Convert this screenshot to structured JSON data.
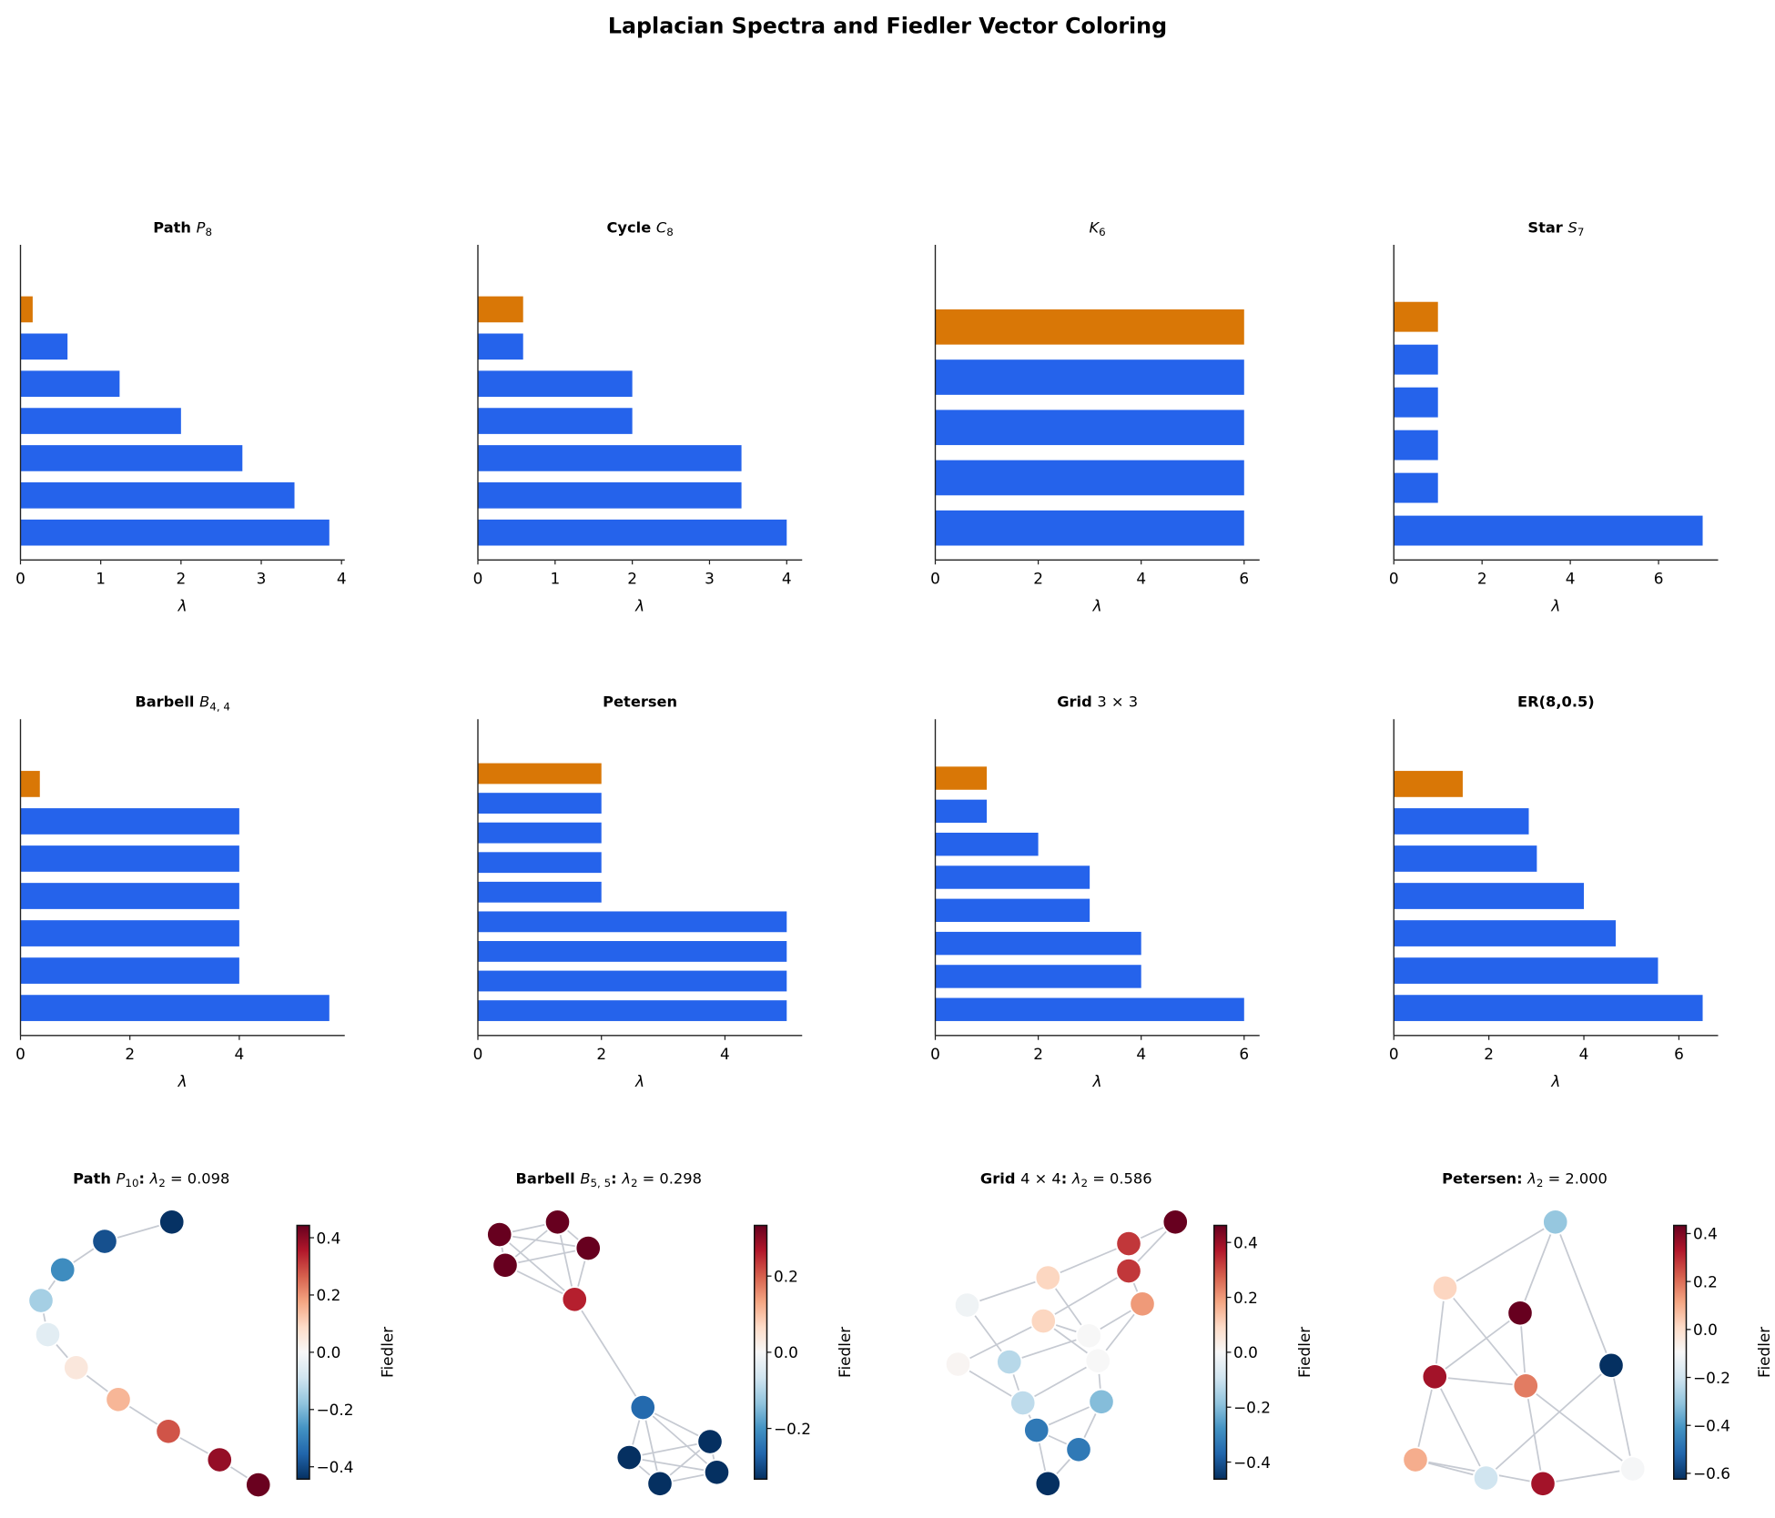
{
  "title": "Laplacian Spectra and Fiedler Vector Coloring",
  "colors": {
    "bar": "#2563eb",
    "fiedler_bar": "#d97706",
    "edge": "#c6cad2",
    "axis": "#222222"
  },
  "chart_data": [
    {
      "type": "bar",
      "orientation": "horizontal",
      "title": [
        {
          "t": "Path ",
          "k": "b"
        },
        {
          "t": "P",
          "k": "i"
        },
        {
          "t": "8",
          "k": "s"
        }
      ],
      "xlabel": "λ",
      "values": [
        0,
        0.152,
        0.586,
        1.235,
        2,
        2.765,
        3.414,
        3.848
      ],
      "highlight_index": 1,
      "xticks": [
        "0",
        "1",
        "2",
        "3",
        "4"
      ],
      "xtick_values": [
        0,
        1,
        2,
        3,
        4
      ]
    },
    {
      "type": "bar",
      "orientation": "horizontal",
      "title": [
        {
          "t": "Cycle ",
          "k": "b"
        },
        {
          "t": "C",
          "k": "i"
        },
        {
          "t": "8",
          "k": "s"
        }
      ],
      "xlabel": "λ",
      "values": [
        0,
        0.586,
        0.586,
        2,
        2,
        3.414,
        3.414,
        4
      ],
      "highlight_index": 1,
      "xticks": [
        "0",
        "1",
        "2",
        "3",
        "4"
      ],
      "xtick_values": [
        0,
        1,
        2,
        3,
        4
      ]
    },
    {
      "type": "bar",
      "orientation": "horizontal",
      "title": [
        {
          "t": "K",
          "k": "i"
        },
        {
          "t": "6",
          "k": "s"
        }
      ],
      "xlabel": "λ",
      "values": [
        0,
        6,
        6,
        6,
        6,
        6
      ],
      "highlight_index": 1,
      "xticks": [
        "0",
        "2",
        "4",
        "6"
      ],
      "xtick_values": [
        0,
        2,
        4,
        6
      ]
    },
    {
      "type": "bar",
      "orientation": "horizontal",
      "title": [
        {
          "t": "Star ",
          "k": "b"
        },
        {
          "t": "S",
          "k": "i"
        },
        {
          "t": "7",
          "k": "s"
        }
      ],
      "xlabel": "λ",
      "values": [
        0,
        1,
        1,
        1,
        1,
        1,
        7
      ],
      "highlight_index": 1,
      "xticks": [
        "0",
        "2",
        "4",
        "6"
      ],
      "xtick_values": [
        0,
        2,
        4,
        6
      ]
    },
    {
      "type": "bar",
      "orientation": "horizontal",
      "title": [
        {
          "t": "Barbell ",
          "k": "b"
        },
        {
          "t": "B",
          "k": "i"
        },
        {
          "t": "4, 4",
          "k": "s"
        }
      ],
      "xlabel": "λ",
      "values": [
        0,
        0.354,
        4,
        4,
        4,
        4,
        4,
        5.646
      ],
      "highlight_index": 1,
      "xticks": [
        "0",
        "2",
        "4"
      ],
      "xtick_values": [
        0,
        2,
        4
      ]
    },
    {
      "type": "bar",
      "orientation": "horizontal",
      "title": [
        {
          "t": "Petersen",
          "k": "b"
        }
      ],
      "xlabel": "λ",
      "values": [
        0,
        2,
        2,
        2,
        2,
        2,
        5,
        5,
        5,
        5
      ],
      "highlight_index": 1,
      "xticks": [
        "0",
        "2",
        "4"
      ],
      "xtick_values": [
        0,
        2,
        4
      ]
    },
    {
      "type": "bar",
      "orientation": "horizontal",
      "title": [
        {
          "t": "Grid ",
          "k": "b"
        },
        {
          "t": "3 × 3",
          "k": "n"
        }
      ],
      "xlabel": "λ",
      "values": [
        0,
        1,
        1,
        2,
        3,
        3,
        4,
        4,
        6
      ],
      "highlight_index": 1,
      "xticks": [
        "0",
        "2",
        "4",
        "6"
      ],
      "xtick_values": [
        0,
        2,
        4,
        6
      ]
    },
    {
      "type": "bar",
      "orientation": "horizontal",
      "title": [
        {
          "t": "ER(8,0.5)",
          "k": "b"
        }
      ],
      "xlabel": "λ",
      "values": [
        0,
        1.45,
        2.84,
        3.01,
        4.0,
        4.67,
        5.56,
        6.5
      ],
      "highlight_index": 1,
      "xticks": [
        "0",
        "2",
        "4",
        "6"
      ],
      "xtick_values": [
        0,
        2,
        4,
        6
      ]
    }
  ],
  "graphs": [
    {
      "title": [
        {
          "t": "Path ",
          "k": "b"
        },
        {
          "t": "P",
          "k": "i"
        },
        {
          "t": "10",
          "k": "s"
        },
        {
          "t": ": ",
          "k": "b"
        },
        {
          "t": "λ",
          "k": "i"
        },
        {
          "t": "2",
          "k": "s"
        },
        {
          "t": " = 0.098",
          "k": "n"
        }
      ],
      "fiedler": [
        -0.44,
        -0.39,
        -0.28,
        -0.15,
        -0.05,
        0.05,
        0.15,
        0.28,
        0.39,
        0.44
      ],
      "edges": [
        [
          0,
          1
        ],
        [
          1,
          2
        ],
        [
          2,
          3
        ],
        [
          3,
          4
        ],
        [
          4,
          5
        ],
        [
          5,
          6
        ],
        [
          6,
          7
        ],
        [
          7,
          8
        ],
        [
          8,
          9
        ]
      ],
      "colorbar": {
        "label": "Fiedler",
        "range": [
          -0.443,
          0.443
        ],
        "ticks": [
          "−0.4",
          "−0.2",
          "0.0",
          "0.2",
          "0.4"
        ],
        "tick_values": [
          -0.4,
          -0.2,
          0,
          0.2,
          0.4
        ]
      }
    },
    {
      "title": [
        {
          "t": "Barbell ",
          "k": "b"
        },
        {
          "t": "B",
          "k": "i"
        },
        {
          "t": "5, 5",
          "k": "s"
        },
        {
          "t": ": ",
          "k": "b"
        },
        {
          "t": "λ",
          "k": "i"
        },
        {
          "t": "2",
          "k": "s"
        },
        {
          "t": " = 0.298",
          "k": "n"
        }
      ],
      "fiedler": [
        0.333,
        0.333,
        0.333,
        0.333,
        0.26,
        -0.26,
        -0.333,
        -0.333,
        -0.333,
        -0.333
      ],
      "edges": [
        [
          0,
          1
        ],
        [
          0,
          2
        ],
        [
          0,
          3
        ],
        [
          0,
          4
        ],
        [
          1,
          2
        ],
        [
          1,
          3
        ],
        [
          1,
          4
        ],
        [
          2,
          3
        ],
        [
          2,
          4
        ],
        [
          3,
          4
        ],
        [
          4,
          5
        ],
        [
          5,
          6
        ],
        [
          5,
          7
        ],
        [
          5,
          8
        ],
        [
          5,
          9
        ],
        [
          6,
          7
        ],
        [
          6,
          8
        ],
        [
          6,
          9
        ],
        [
          7,
          8
        ],
        [
          7,
          9
        ],
        [
          8,
          9
        ]
      ],
      "colorbar": {
        "label": "Fiedler",
        "range": [
          -0.333,
          0.333
        ],
        "ticks": [
          "−0.2",
          "0.0",
          "0.2"
        ],
        "tick_values": [
          -0.2,
          0,
          0.2
        ]
      }
    },
    {
      "title": [
        {
          "t": "Grid ",
          "k": "b"
        },
        {
          "t": "4 × 4",
          "k": "n"
        },
        {
          "t": ": ",
          "k": "b"
        },
        {
          "t": "λ",
          "k": "i"
        },
        {
          "t": "2",
          "k": "s"
        },
        {
          "t": " = 0.586",
          "k": "n"
        }
      ],
      "fiedler": [
        0.462,
        0.33,
        0.33,
        0.2,
        0.1,
        0.1,
        -0.02,
        0.0,
        0.01,
        -0.13,
        0.0,
        -0.12,
        -0.2,
        -0.33,
        -0.33,
        -0.462
      ],
      "edges": [
        [
          0,
          1
        ],
        [
          0,
          2
        ],
        [
          1,
          4
        ],
        [
          2,
          5
        ],
        [
          2,
          3
        ],
        [
          3,
          7
        ],
        [
          3,
          10
        ],
        [
          4,
          6
        ],
        [
          4,
          7
        ],
        [
          5,
          8
        ],
        [
          5,
          7
        ],
        [
          6,
          9
        ],
        [
          9,
          7
        ],
        [
          8,
          11
        ],
        [
          9,
          11
        ],
        [
          10,
          11
        ],
        [
          10,
          12
        ],
        [
          11,
          13
        ],
        [
          12,
          13
        ],
        [
          13,
          14
        ],
        [
          13,
          15
        ],
        [
          14,
          15
        ],
        [
          12,
          14
        ],
        [
          5,
          10
        ]
      ],
      "colorbar": {
        "label": "Fiedler",
        "range": [
          -0.462,
          0.462
        ],
        "ticks": [
          "−0.4",
          "−0.2",
          "0.0",
          "0.2",
          "0.4"
        ],
        "tick_values": [
          -0.4,
          -0.2,
          0,
          0.2,
          0.4
        ]
      }
    },
    {
      "title": [
        {
          "t": "Petersen: ",
          "k": "b"
        },
        {
          "t": "λ",
          "k": "i"
        },
        {
          "t": "2",
          "k": "s"
        },
        {
          "t": " = 2.000",
          "k": "n"
        }
      ],
      "fiedler": [
        -0.3,
        0.02,
        0.434,
        0.35,
        0.18,
        -0.624,
        0.1,
        -0.2,
        0.35,
        -0.1
      ],
      "edges": [
        [
          0,
          1
        ],
        [
          0,
          2
        ],
        [
          0,
          5
        ],
        [
          1,
          3
        ],
        [
          1,
          4
        ],
        [
          2,
          3
        ],
        [
          2,
          4
        ],
        [
          3,
          4
        ],
        [
          3,
          6
        ],
        [
          3,
          7
        ],
        [
          4,
          8
        ],
        [
          4,
          9
        ],
        [
          5,
          7
        ],
        [
          5,
          9
        ],
        [
          6,
          7
        ],
        [
          6,
          8
        ],
        [
          8,
          9
        ]
      ],
      "colorbar": {
        "label": "Fiedler",
        "range": [
          -0.624,
          0.434
        ],
        "ticks": [
          "−0.6",
          "−0.4",
          "−0.2",
          "0.0",
          "0.2",
          "0.4"
        ],
        "tick_values": [
          -0.6,
          -0.4,
          -0.2,
          0,
          0.2,
          0.4
        ]
      }
    }
  ]
}
